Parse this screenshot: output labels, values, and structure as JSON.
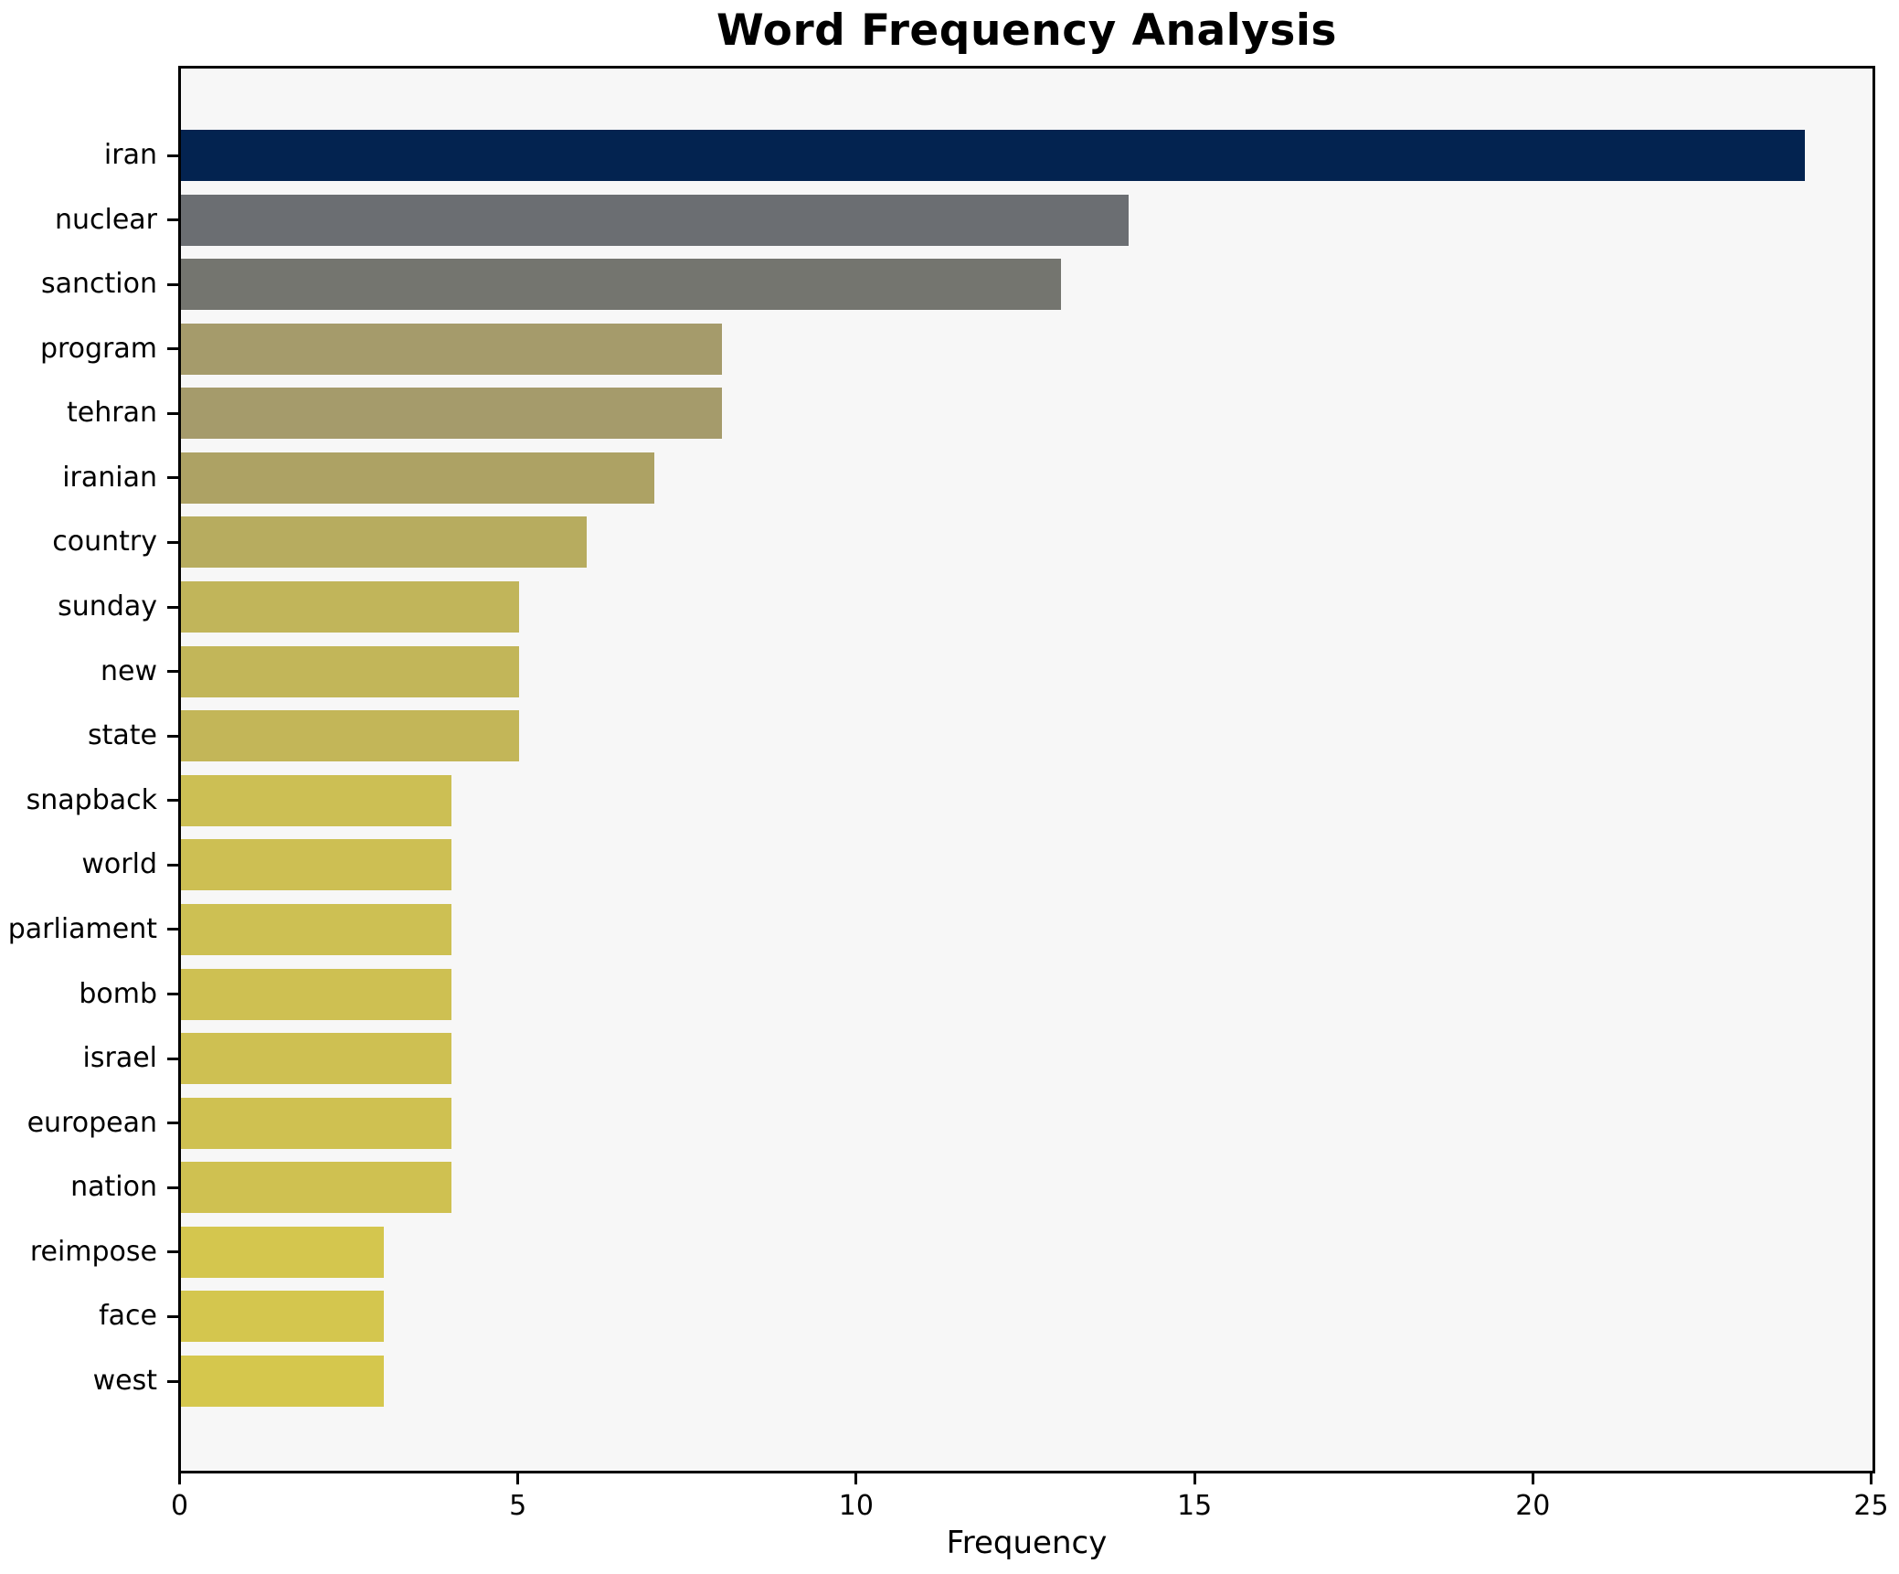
{
  "figure": {
    "background": "#ffffff",
    "plot_background": "#f7f7f7",
    "spine_color": "#000000",
    "text_color": "#000000"
  },
  "chart_data": {
    "type": "bar",
    "orientation": "horizontal",
    "title": "Word Frequency Analysis",
    "xlabel": "Frequency",
    "ylabel": "",
    "grid": false,
    "legend": null,
    "xlim": [
      0,
      25
    ],
    "xticks": [
      0,
      5,
      10,
      15,
      20,
      25
    ],
    "categories": [
      "iran",
      "nuclear",
      "sanction",
      "program",
      "tehran",
      "iranian",
      "country",
      "sunday",
      "new",
      "state",
      "snapback",
      "world",
      "parliament",
      "bomb",
      "israel",
      "european",
      "nation",
      "reimpose",
      "face",
      "west"
    ],
    "values": [
      24,
      14,
      13,
      8,
      8,
      7,
      6,
      5,
      5,
      5,
      4,
      4,
      4,
      4,
      4,
      4,
      4,
      3,
      3,
      3
    ],
    "bar_colors": [
      "#032350",
      "#6b6e72",
      "#74756f",
      "#a59b6b",
      "#a59b6b",
      "#ada264",
      "#b7ac5f",
      "#c1b55a",
      "#c2b659",
      "#c3b658",
      "#ccbf54",
      "#cdbf53",
      "#cdc053",
      "#cec052",
      "#cec052",
      "#cfc151",
      "#cfc151",
      "#d4c64e",
      "#d4c64e",
      "#d5c74d"
    ]
  }
}
